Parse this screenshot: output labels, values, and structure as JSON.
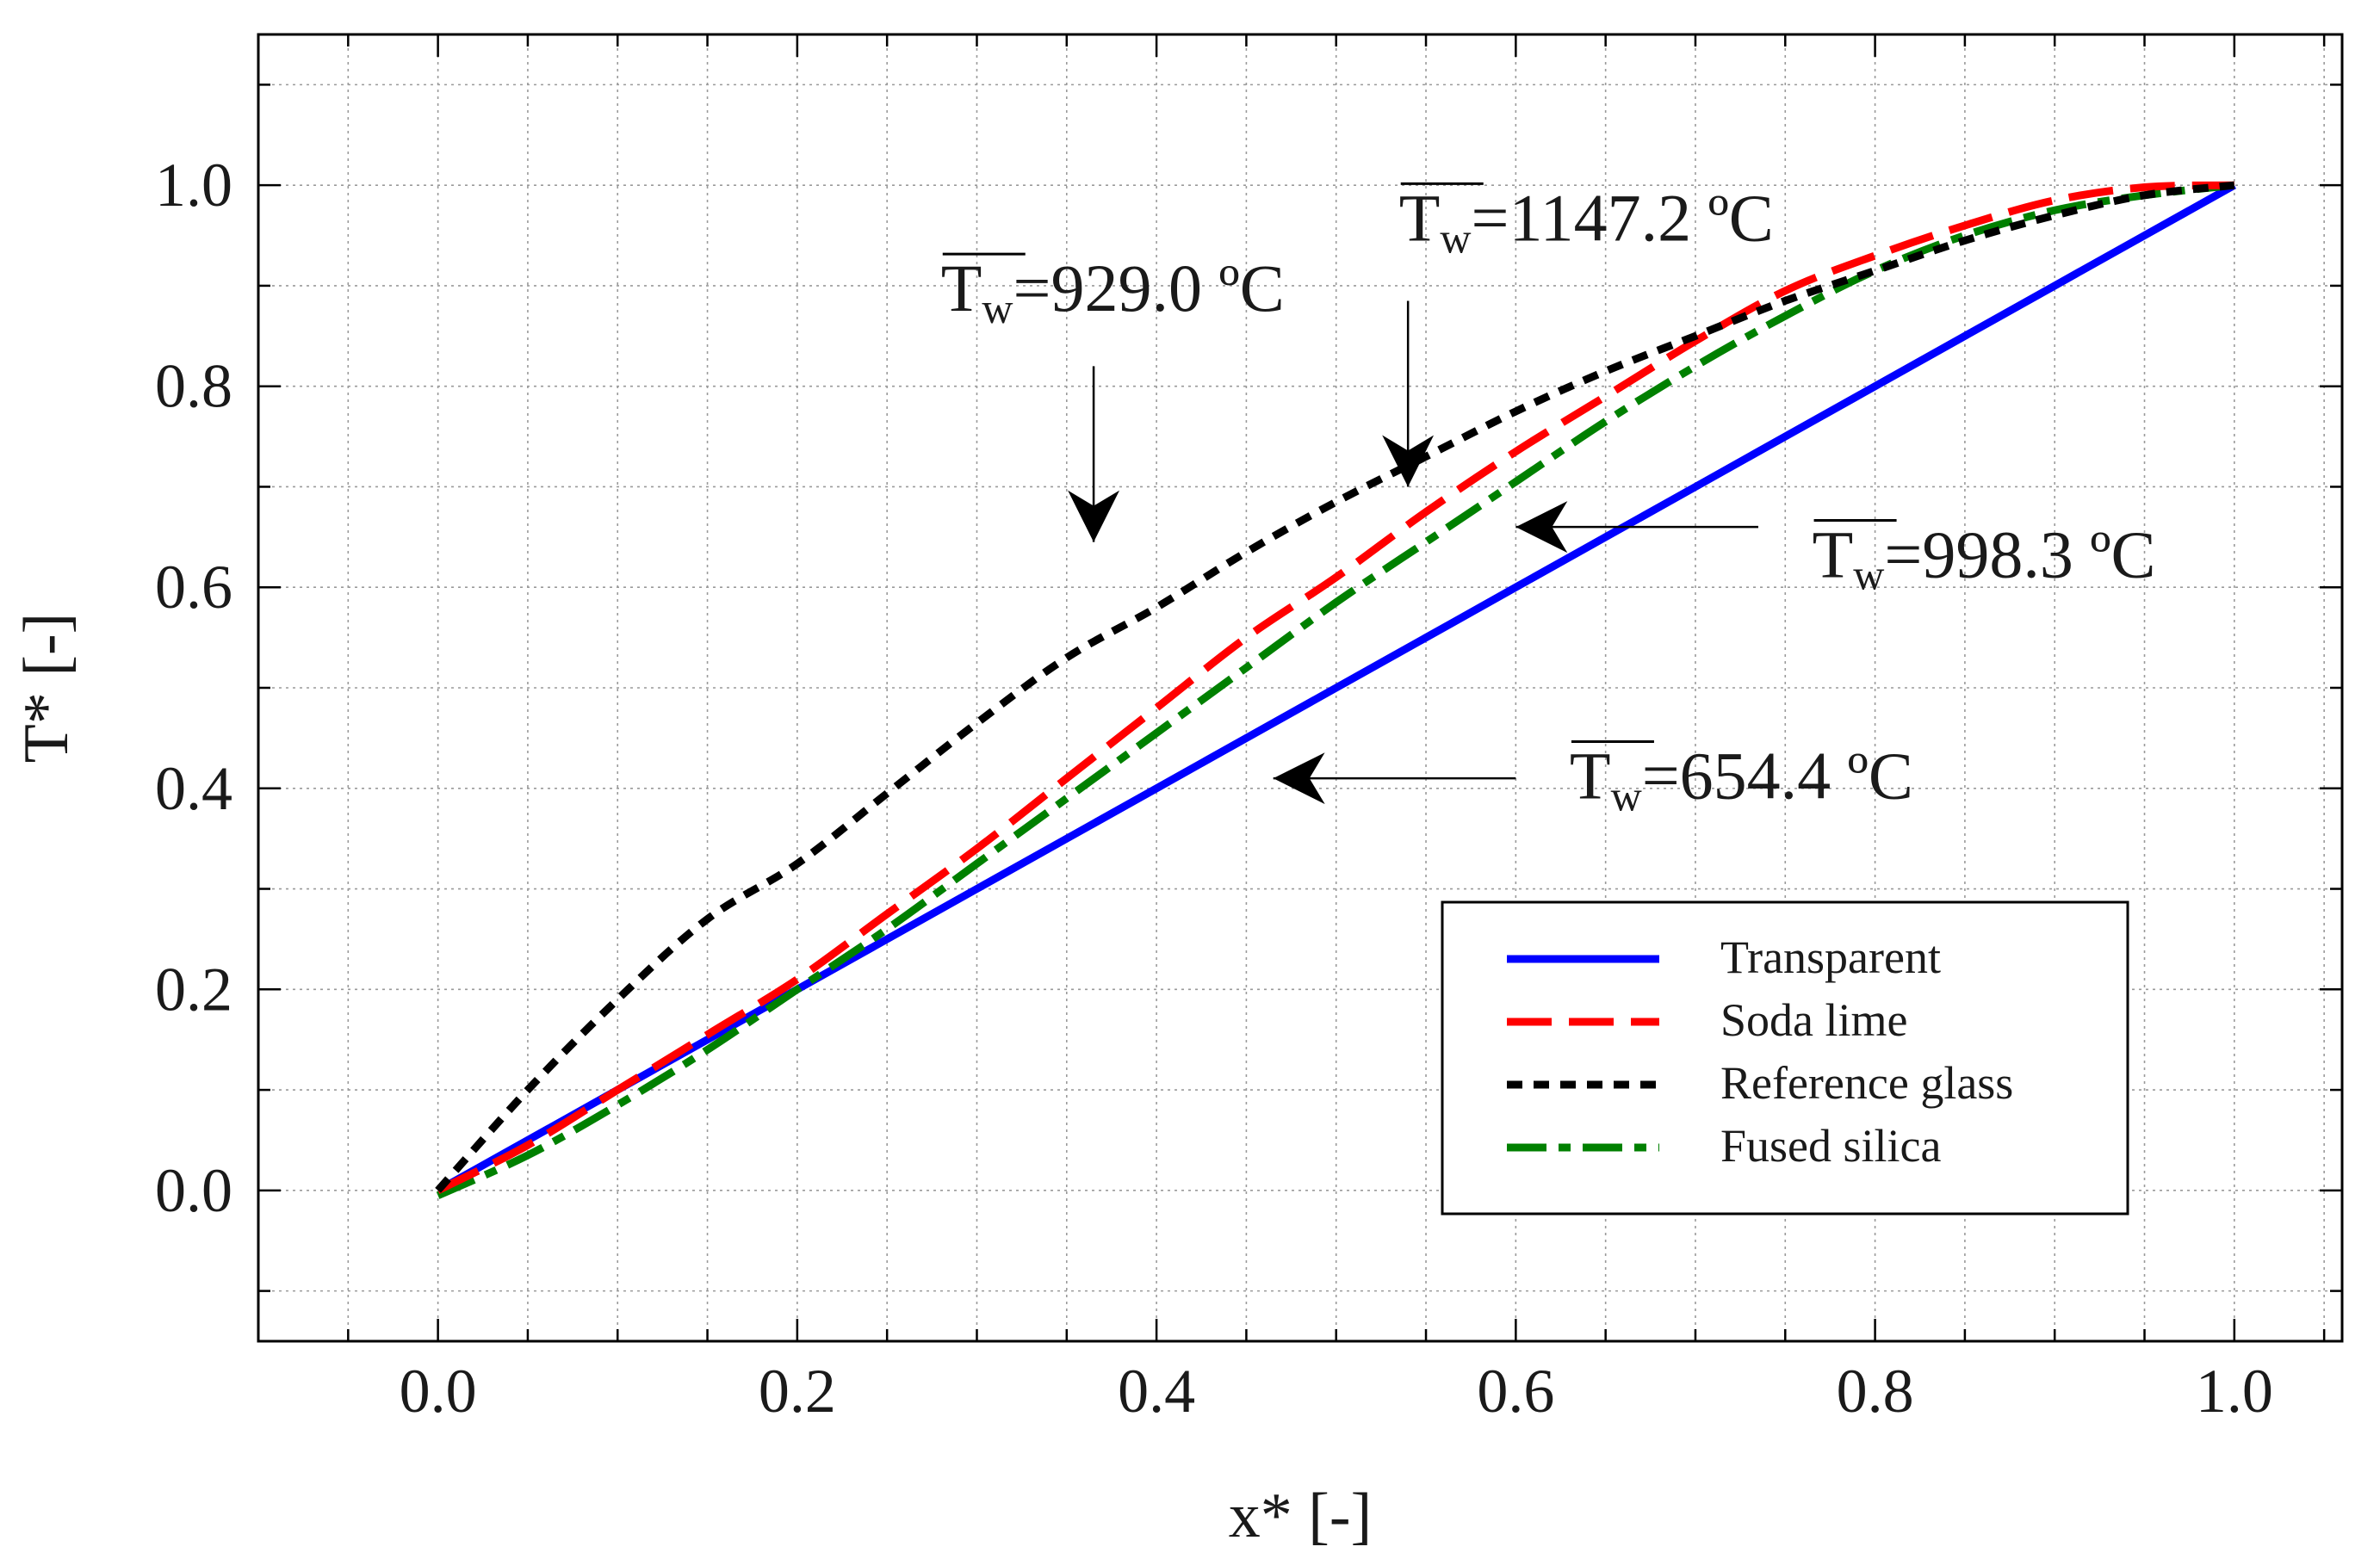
{
  "chart_data": {
    "type": "line",
    "xlabel": "x* [-]",
    "ylabel": "T* [-]",
    "xlim": [
      -0.1,
      1.06
    ],
    "ylim": [
      -0.15,
      1.15
    ],
    "xticks": [
      0.0,
      0.2,
      0.4,
      0.6,
      0.8,
      1.0
    ],
    "xtick_labels": [
      "0.0",
      "0.2",
      "0.4",
      "0.6",
      "0.8",
      "1.0"
    ],
    "yticks": [
      0.0,
      0.2,
      0.4,
      0.6,
      0.8,
      1.0
    ],
    "ytick_labels": [
      "0.0",
      "0.2",
      "0.4",
      "0.6",
      "0.8",
      "1.0"
    ],
    "x_minor_step": 0.05,
    "y_minor_step": 0.1,
    "grid": true,
    "legend_position": "bottom-right",
    "series": [
      {
        "name": "Transparent",
        "color": "#0000ff",
        "dash": "solid",
        "x": [
          0.0,
          0.1,
          0.2,
          0.3,
          0.4,
          0.5,
          0.6,
          0.7,
          0.8,
          0.9,
          1.0
        ],
        "y": [
          0.0,
          0.1,
          0.2,
          0.3,
          0.4,
          0.5,
          0.6,
          0.7,
          0.8,
          0.9,
          1.0
        ]
      },
      {
        "name": "Soda lime",
        "color": "#ff0000",
        "dash": "long-dash",
        "x": [
          0.0,
          0.05,
          0.1,
          0.15,
          0.2,
          0.25,
          0.3,
          0.35,
          0.4,
          0.45,
          0.5,
          0.55,
          0.6,
          0.65,
          0.7,
          0.75,
          0.8,
          0.85,
          0.9,
          0.95,
          1.0
        ],
        "y": [
          0.0,
          0.045,
          0.1,
          0.155,
          0.21,
          0.275,
          0.34,
          0.41,
          0.48,
          0.55,
          0.61,
          0.675,
          0.735,
          0.79,
          0.845,
          0.895,
          0.93,
          0.96,
          0.985,
          0.998,
          1.0
        ]
      },
      {
        "name": "Reference glass",
        "color": "#000000",
        "dash": "short-dash",
        "x": [
          0.0,
          0.05,
          0.1,
          0.15,
          0.2,
          0.25,
          0.3,
          0.35,
          0.4,
          0.45,
          0.5,
          0.55,
          0.6,
          0.65,
          0.7,
          0.75,
          0.8,
          0.85,
          0.9,
          0.95,
          1.0
        ],
        "y": [
          0.0,
          0.1,
          0.19,
          0.27,
          0.325,
          0.395,
          0.465,
          0.53,
          0.58,
          0.635,
          0.685,
          0.73,
          0.775,
          0.815,
          0.85,
          0.885,
          0.915,
          0.945,
          0.97,
          0.99,
          1.0
        ]
      },
      {
        "name": "Fused silica",
        "color": "#008000",
        "dash": "dash-dot",
        "x": [
          0.0,
          0.05,
          0.1,
          0.15,
          0.2,
          0.25,
          0.3,
          0.35,
          0.4,
          0.45,
          0.5,
          0.55,
          0.6,
          0.65,
          0.7,
          0.75,
          0.8,
          0.85,
          0.9,
          0.95,
          1.0
        ],
        "y": [
          -0.005,
          0.035,
          0.085,
          0.14,
          0.2,
          0.26,
          0.325,
          0.39,
          0.455,
          0.52,
          0.585,
          0.645,
          0.705,
          0.765,
          0.82,
          0.87,
          0.915,
          0.95,
          0.975,
          0.99,
          1.0
        ]
      }
    ],
    "annotations": [
      {
        "id": "ref-glass",
        "symbol": "T",
        "subscript": "w",
        "text": "=929.0 ºC",
        "text_at": [
          0.28,
          0.875
        ],
        "arrow_from": [
          0.365,
          0.82
        ],
        "arrow_to": [
          0.365,
          0.645
        ]
      },
      {
        "id": "soda-lime",
        "symbol": "T",
        "subscript": "w",
        "text": "=1147.2 ºC",
        "text_at": [
          0.535,
          0.945
        ],
        "arrow_from": [
          0.54,
          0.885
        ],
        "arrow_to": [
          0.54,
          0.7
        ]
      },
      {
        "id": "fused-silica",
        "symbol": "T",
        "subscript": "w",
        "text": "=998.3 ºC",
        "text_at": [
          0.765,
          0.61
        ],
        "arrow_from": [
          0.735,
          0.66
        ],
        "arrow_to": [
          0.6,
          0.66
        ]
      },
      {
        "id": "transparent",
        "symbol": "T",
        "subscript": "w",
        "text": "=654.4 ºC",
        "text_at": [
          0.63,
          0.39
        ],
        "arrow_from": [
          0.6,
          0.41
        ],
        "arrow_to": [
          0.465,
          0.41
        ]
      }
    ]
  }
}
